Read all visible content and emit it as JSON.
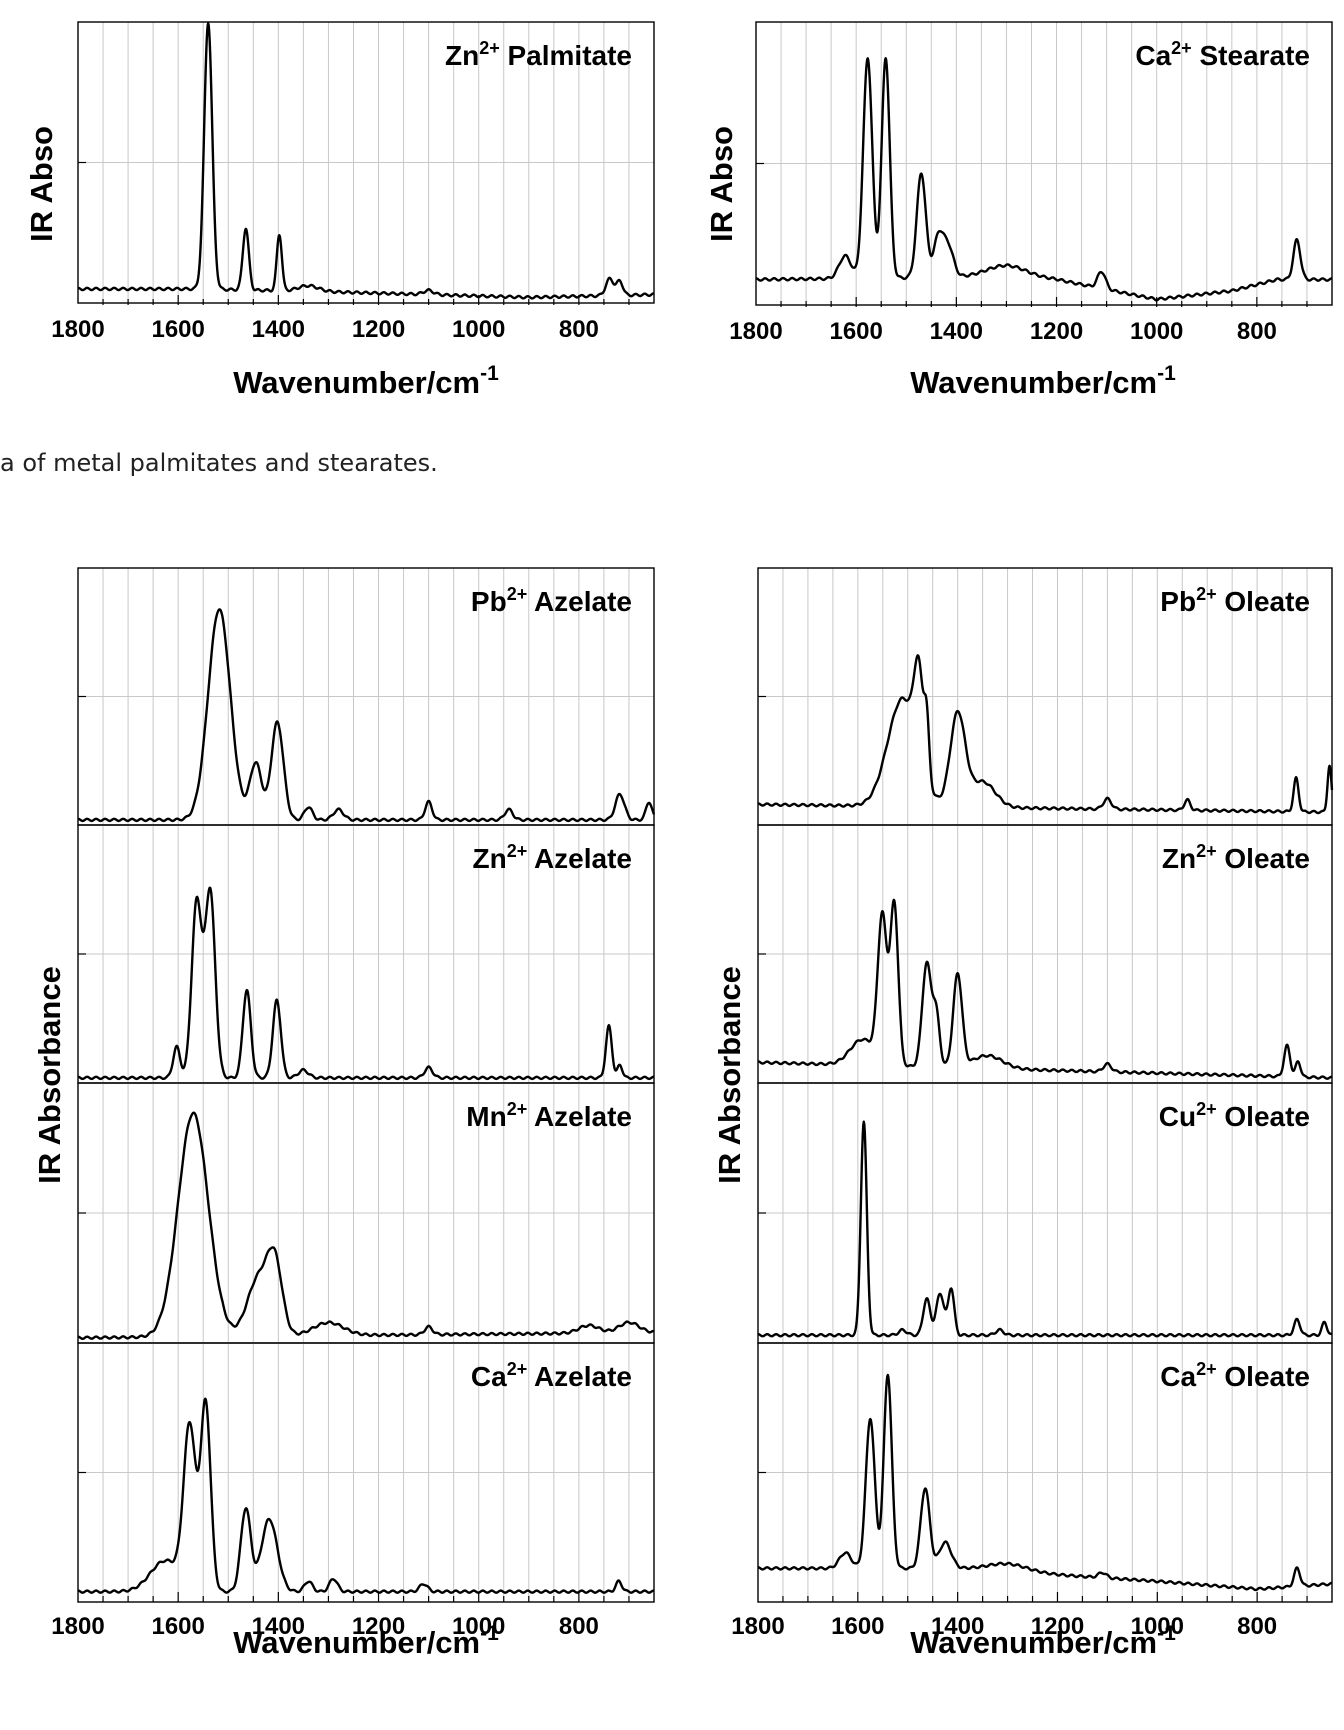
{
  "caption": "a of metal palmitates and stearates.",
  "xlabel_base": "Wavenumber/cm",
  "xlabel_exp": "-1",
  "ylabel_top": "IR Abso",
  "ylabel_bottom": "IR Absorbance",
  "chart_data": [
    {
      "type": "line",
      "group": "top-left",
      "xlabel": "Wavenumber/cm-1",
      "ylabel": "IR Abso",
      "xlim": [
        1800,
        650
      ],
      "x_reversed": true,
      "xticks": [
        1800,
        1600,
        1400,
        1200,
        1000,
        800
      ],
      "grid": true,
      "panels": [
        {
          "label_metal": "Zn",
          "label_charge": "2+",
          "label_name": "Palmitate",
          "baseline": 0.05,
          "peaks": [
            [
              1540,
              0.95,
              8
            ],
            [
              1465,
              0.22,
              6
            ],
            [
              1398,
              0.2,
              5
            ],
            [
              1340,
              0.02,
              20
            ],
            [
              1100,
              0.015,
              10
            ],
            [
              738,
              0.06,
              8
            ],
            [
              718,
              0.05,
              6
            ]
          ],
          "drift": [
            [
              1800,
              0.0
            ],
            [
              1560,
              0.0
            ],
            [
              1300,
              -0.01
            ],
            [
              900,
              -0.03
            ],
            [
              650,
              -0.02
            ]
          ]
        }
      ]
    },
    {
      "type": "line",
      "group": "top-right",
      "xlabel": "Wavenumber/cm-1",
      "ylabel": "IR Abso",
      "xlim": [
        1800,
        650
      ],
      "x_reversed": true,
      "xticks": [
        1800,
        1600,
        1400,
        1200,
        1000,
        800
      ],
      "grid": true,
      "panels": [
        {
          "label_metal": "Ca",
          "label_charge": "2+",
          "label_name": "Stearate",
          "baseline": 0.09,
          "peaks": [
            [
              1622,
              0.08,
              12
            ],
            [
              1577,
              0.78,
              9
            ],
            [
              1541,
              0.78,
              8
            ],
            [
              1470,
              0.37,
              9
            ],
            [
              1435,
              0.15,
              10
            ],
            [
              1415,
              0.1,
              10
            ],
            [
              1300,
              0.04,
              40
            ],
            [
              1110,
              0.06,
              8
            ],
            [
              720,
              0.14,
              7
            ]
          ],
          "drift": [
            [
              1800,
              0.0
            ],
            [
              1300,
              0.01
            ],
            [
              1200,
              0.0
            ],
            [
              1000,
              -0.07
            ],
            [
              850,
              -0.04
            ],
            [
              760,
              0.0
            ],
            [
              650,
              0.0
            ]
          ]
        }
      ]
    },
    {
      "type": "line",
      "group": "bottom-left",
      "xlabel": "Wavenumber/cm-1",
      "ylabel": "IR Absorbance",
      "xlim": [
        1800,
        650
      ],
      "x_reversed": true,
      "xticks": [
        1800,
        1600,
        1400,
        1200,
        1000,
        800
      ],
      "grid": true,
      "panels": [
        {
          "label_metal": "Pb",
          "label_charge": "2+",
          "label_name": "Azelate",
          "baseline": 0.02,
          "peaks": [
            [
              1518,
              0.82,
              22
            ],
            [
              1445,
              0.22,
              12
            ],
            [
              1402,
              0.38,
              12
            ],
            [
              1340,
              0.05,
              8
            ],
            [
              1280,
              0.04,
              10
            ],
            [
              1100,
              0.07,
              7
            ],
            [
              940,
              0.04,
              8
            ],
            [
              718,
              0.1,
              9
            ],
            [
              660,
              0.07,
              6
            ]
          ],
          "drift": [
            [
              1800,
              0.0
            ],
            [
              650,
              0.0
            ]
          ]
        },
        {
          "label_metal": "Zn",
          "label_charge": "2+",
          "label_name": "Azelate",
          "baseline": 0.02,
          "peaks": [
            [
              1603,
              0.12,
              7
            ],
            [
              1563,
              0.68,
              10
            ],
            [
              1536,
              0.72,
              10
            ],
            [
              1463,
              0.34,
              8
            ],
            [
              1403,
              0.3,
              8
            ],
            [
              1350,
              0.03,
              10
            ],
            [
              1100,
              0.04,
              8
            ],
            [
              740,
              0.2,
              6
            ],
            [
              718,
              0.05,
              5
            ]
          ],
          "drift": [
            [
              1800,
              0.0
            ],
            [
              650,
              0.0
            ]
          ]
        },
        {
          "label_metal": "Mn",
          "label_charge": "2+",
          "label_name": "Azelate",
          "baseline": 0.02,
          "peaks": [
            [
              1570,
              0.86,
              30
            ],
            [
              1440,
              0.22,
              22
            ],
            [
              1407,
              0.26,
              15
            ],
            [
              1300,
              0.05,
              30
            ],
            [
              1100,
              0.03,
              8
            ],
            [
              780,
              0.03,
              20
            ],
            [
              700,
              0.04,
              20
            ]
          ],
          "drift": [
            [
              1800,
              0.0
            ],
            [
              650,
              0.02
            ]
          ]
        },
        {
          "label_metal": "Ca",
          "label_charge": "2+",
          "label_name": "Azelate",
          "baseline": 0.04,
          "peaks": [
            [
              1625,
              0.12,
              30
            ],
            [
              1577,
              0.62,
              12
            ],
            [
              1545,
              0.72,
              10
            ],
            [
              1465,
              0.32,
              10
            ],
            [
              1418,
              0.28,
              16
            ],
            [
              1340,
              0.04,
              8
            ],
            [
              1290,
              0.05,
              8
            ],
            [
              1110,
              0.03,
              8
            ],
            [
              720,
              0.04,
              6
            ]
          ],
          "drift": [
            [
              1800,
              0.0
            ],
            [
              650,
              0.0
            ]
          ]
        }
      ]
    },
    {
      "type": "line",
      "group": "bottom-right",
      "xlabel": "Wavenumber/cm-1",
      "ylabel": "IR Absorbance",
      "xlim": [
        1800,
        650
      ],
      "x_reversed": true,
      "xticks": [
        1800,
        1600,
        1400,
        1200,
        1000,
        800
      ],
      "grid": true,
      "panels": [
        {
          "label_metal": "Pb",
          "label_charge": "2+",
          "label_name": "Oleate",
          "baseline": 0.08,
          "peaks": [
            [
              1510,
              0.42,
              30
            ],
            [
              1478,
              0.34,
              9
            ],
            [
              1462,
              0.22,
              5
            ],
            [
              1400,
              0.36,
              15
            ],
            [
              1350,
              0.1,
              25
            ],
            [
              1100,
              0.04,
              8
            ],
            [
              940,
              0.04,
              6
            ],
            [
              722,
              0.13,
              5
            ],
            [
              655,
              0.18,
              4
            ]
          ],
          "drift": [
            [
              1800,
              0.0
            ],
            [
              650,
              -0.03
            ]
          ]
        },
        {
          "label_metal": "Zn",
          "label_charge": "2+",
          "label_name": "Oleate",
          "baseline": 0.08,
          "peaks": [
            [
              1590,
              0.1,
              25
            ],
            [
              1551,
              0.56,
              9
            ],
            [
              1527,
              0.62,
              8
            ],
            [
              1462,
              0.4,
              9
            ],
            [
              1443,
              0.2,
              7
            ],
            [
              1400,
              0.36,
              9
            ],
            [
              1340,
              0.05,
              30
            ],
            [
              1100,
              0.03,
              8
            ],
            [
              740,
              0.12,
              6
            ],
            [
              718,
              0.06,
              5
            ]
          ],
          "drift": [
            [
              1800,
              0.0
            ],
            [
              650,
              -0.06
            ]
          ]
        },
        {
          "label_metal": "Cu",
          "label_charge": "2+",
          "label_name": "Oleate",
          "baseline": 0.03,
          "peaks": [
            [
              1588,
              0.82,
              6
            ],
            [
              1510,
              0.02,
              8
            ],
            [
              1462,
              0.14,
              7
            ],
            [
              1435,
              0.16,
              8
            ],
            [
              1413,
              0.18,
              6
            ],
            [
              1316,
              0.02,
              8
            ],
            [
              720,
              0.06,
              6
            ],
            [
              665,
              0.05,
              5
            ]
          ],
          "drift": [
            [
              1800,
              0.0
            ],
            [
              650,
              0.0
            ]
          ]
        },
        {
          "label_metal": "Ca",
          "label_charge": "2+",
          "label_name": "Oleate",
          "baseline": 0.13,
          "peaks": [
            [
              1625,
              0.06,
              12
            ],
            [
              1575,
              0.58,
              9
            ],
            [
              1540,
              0.75,
              8
            ],
            [
              1465,
              0.31,
              9
            ],
            [
              1425,
              0.1,
              12
            ],
            [
              1300,
              0.03,
              40
            ],
            [
              1110,
              0.02,
              8
            ],
            [
              720,
              0.07,
              6
            ]
          ],
          "drift": [
            [
              1800,
              0.0
            ],
            [
              1400,
              0.0
            ],
            [
              1000,
              -0.05
            ],
            [
              800,
              -0.08
            ],
            [
              650,
              -0.06
            ]
          ]
        }
      ]
    }
  ]
}
